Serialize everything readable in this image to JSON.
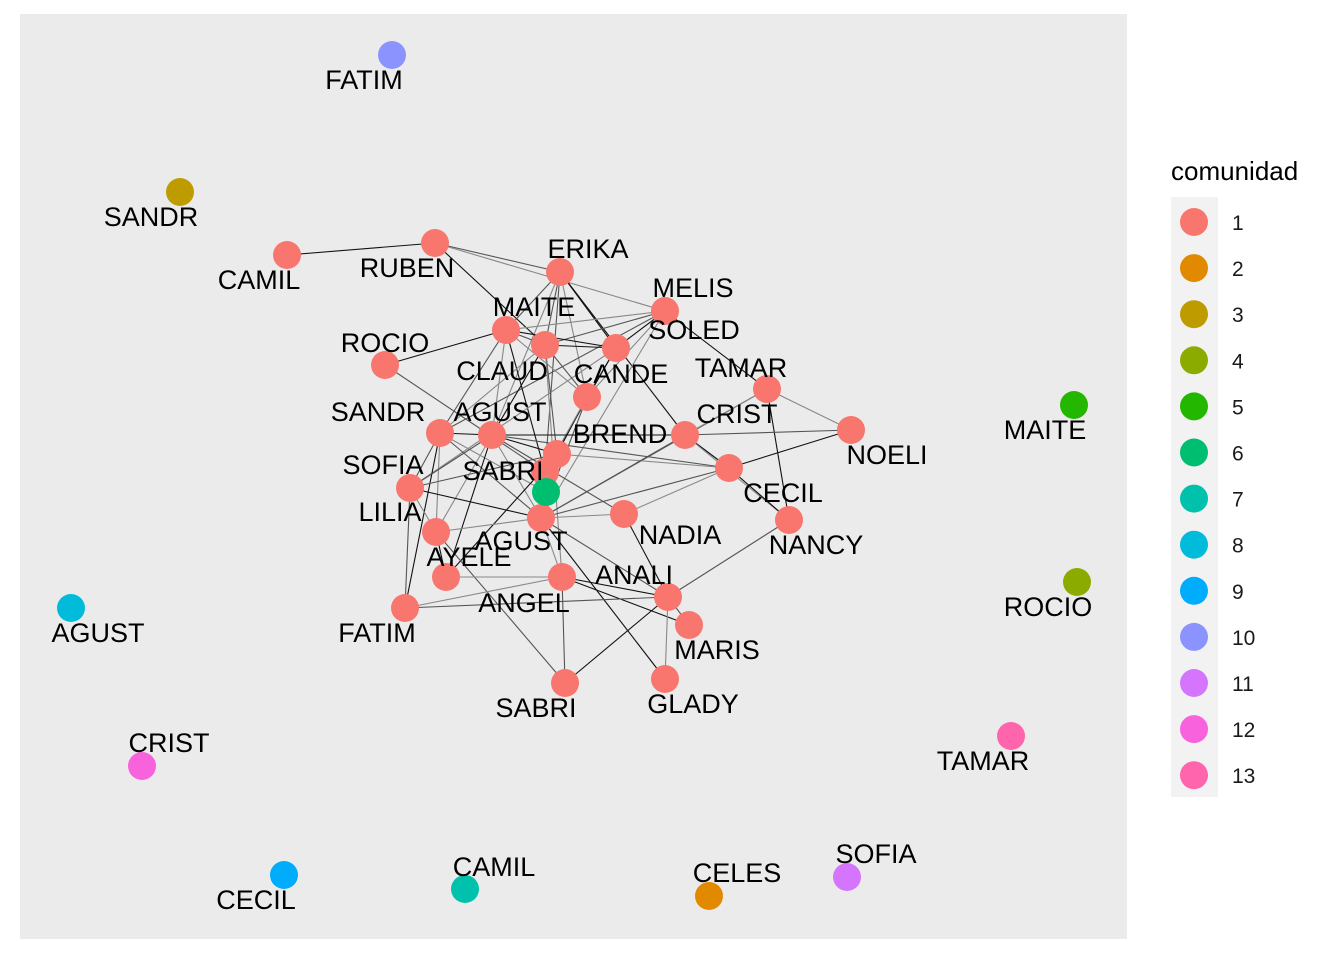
{
  "legend": {
    "title": "comunidad",
    "items": [
      {
        "label": "1",
        "color": "#F8766D"
      },
      {
        "label": "2",
        "color": "#E18A00"
      },
      {
        "label": "3",
        "color": "#BE9C00"
      },
      {
        "label": "4",
        "color": "#8CAB00"
      },
      {
        "label": "5",
        "color": "#24B700"
      },
      {
        "label": "6",
        "color": "#00BE70"
      },
      {
        "label": "7",
        "color": "#00C1AB"
      },
      {
        "label": "8",
        "color": "#00BBDA"
      },
      {
        "label": "9",
        "color": "#00ACFC"
      },
      {
        "label": "10",
        "color": "#8B93FF"
      },
      {
        "label": "11",
        "color": "#D575FE"
      },
      {
        "label": "12",
        "color": "#F962DD"
      },
      {
        "label": "13",
        "color": "#FF65AC"
      }
    ]
  },
  "nodes": [
    {
      "id": "camil1",
      "label": "CAMIL",
      "community": 1
    },
    {
      "id": "ruben",
      "label": "RUBEN",
      "community": 1
    },
    {
      "id": "erika",
      "label": "ERIKA",
      "community": 1
    },
    {
      "id": "melis",
      "label": "MELIS",
      "community": 1
    },
    {
      "id": "maite1",
      "label": "MAITE",
      "community": 1
    },
    {
      "id": "soled",
      "label": "SOLED",
      "community": 1
    },
    {
      "id": "claud",
      "label": "CLAUD",
      "community": 1
    },
    {
      "id": "cande",
      "label": "CANDE",
      "community": 1
    },
    {
      "id": "rocio1",
      "label": "ROCIO",
      "community": 1
    },
    {
      "id": "tamar1",
      "label": "TAMAR",
      "community": 1
    },
    {
      "id": "sandr1",
      "label": "SANDR",
      "community": 1
    },
    {
      "id": "agust1",
      "label": "AGUST",
      "community": 1
    },
    {
      "id": "brend",
      "label": "BREND",
      "community": 1
    },
    {
      "id": "crist1",
      "label": "CRIST",
      "community": 1
    },
    {
      "id": "noeli",
      "label": "NOELI",
      "community": 1
    },
    {
      "id": "sofia1",
      "label": "SOFIA",
      "community": 1
    },
    {
      "id": "sabri1",
      "label": "SABRI",
      "community": 1
    },
    {
      "id": "cecil1",
      "label": "CECIL",
      "community": 1
    },
    {
      "id": "lilia",
      "label": "LILIA",
      "community": 1
    },
    {
      "id": "agust2",
      "label": "AGUST",
      "community": 1
    },
    {
      "id": "nadia",
      "label": "NADIA",
      "community": 1
    },
    {
      "id": "nancy",
      "label": "NANCY",
      "community": 1
    },
    {
      "id": "ayele",
      "label": "AYELE",
      "community": 1
    },
    {
      "id": "angel",
      "label": "ANGEL",
      "community": 1
    },
    {
      "id": "anali",
      "label": "ANALI",
      "community": 1
    },
    {
      "id": "fatim1",
      "label": "FATIM",
      "community": 1
    },
    {
      "id": "maris",
      "label": "MARIS",
      "community": 1
    },
    {
      "id": "sabri2",
      "label": "SABRI",
      "community": 1
    },
    {
      "id": "glady",
      "label": "GLADY",
      "community": 1
    },
    {
      "id": "g6",
      "label": "",
      "community": 6
    },
    {
      "id": "fatim10",
      "label": "FATIM",
      "community": 10
    },
    {
      "id": "sandr3",
      "label": "SANDR",
      "community": 3
    },
    {
      "id": "maite5",
      "label": "MAITE",
      "community": 5
    },
    {
      "id": "rocio4",
      "label": "ROCIO",
      "community": 4
    },
    {
      "id": "agust8",
      "label": "AGUST",
      "community": 8
    },
    {
      "id": "crist12",
      "label": "CRIST",
      "community": 12
    },
    {
      "id": "tamar13",
      "label": "TAMAR",
      "community": 13
    },
    {
      "id": "cecil9",
      "label": "CECIL",
      "community": 9
    },
    {
      "id": "camil7",
      "label": "CAMIL",
      "community": 7
    },
    {
      "id": "celes2",
      "label": "CELES",
      "community": 2
    },
    {
      "id": "sofia11",
      "label": "SOFIA",
      "community": 11
    }
  ],
  "edges": [
    [
      "camil1",
      "ruben"
    ],
    [
      "ruben",
      "erika"
    ],
    [
      "ruben",
      "melis"
    ],
    [
      "ruben",
      "claud"
    ],
    [
      "erika",
      "maite1"
    ],
    [
      "erika",
      "cande"
    ],
    [
      "erika",
      "soled"
    ],
    [
      "erika",
      "claud"
    ],
    [
      "erika",
      "agust1"
    ],
    [
      "erika",
      "crist1"
    ],
    [
      "erika",
      "sabri1"
    ],
    [
      "melis",
      "maite1"
    ],
    [
      "melis",
      "soled"
    ],
    [
      "melis",
      "claud"
    ],
    [
      "melis",
      "cande"
    ],
    [
      "melis",
      "tamar1"
    ],
    [
      "melis",
      "sandr1"
    ],
    [
      "melis",
      "agust2"
    ],
    [
      "maite1",
      "soled"
    ],
    [
      "maite1",
      "claud"
    ],
    [
      "maite1",
      "agust1"
    ],
    [
      "maite1",
      "sabri1"
    ],
    [
      "maite1",
      "sandr1"
    ],
    [
      "maite1",
      "cande"
    ],
    [
      "soled",
      "claud"
    ],
    [
      "soled",
      "cande"
    ],
    [
      "soled",
      "sofia1"
    ],
    [
      "soled",
      "sabri1"
    ],
    [
      "claud",
      "cande"
    ],
    [
      "claud",
      "sandr1"
    ],
    [
      "claud",
      "agust1"
    ],
    [
      "claud",
      "brend"
    ],
    [
      "claud",
      "angel"
    ],
    [
      "cande",
      "brend"
    ],
    [
      "cande",
      "agust2"
    ],
    [
      "cande",
      "sabri1"
    ],
    [
      "rocio1",
      "maite1"
    ],
    [
      "rocio1",
      "sabri1"
    ],
    [
      "tamar1",
      "noeli"
    ],
    [
      "tamar1",
      "nancy"
    ],
    [
      "tamar1",
      "agust2"
    ],
    [
      "tamar1",
      "crist1"
    ],
    [
      "sandr1",
      "agust1"
    ],
    [
      "sandr1",
      "agust2"
    ],
    [
      "sandr1",
      "lilia"
    ],
    [
      "sandr1",
      "fatim1"
    ],
    [
      "sandr1",
      "sofia1"
    ],
    [
      "sandr1",
      "g6"
    ],
    [
      "agust1",
      "brend"
    ],
    [
      "agust1",
      "nadia"
    ],
    [
      "agust1",
      "lilia"
    ],
    [
      "agust1",
      "ayele"
    ],
    [
      "agust1",
      "sofia1"
    ],
    [
      "agust1",
      "agust2"
    ],
    [
      "agust1",
      "crist1"
    ],
    [
      "agust1",
      "cecil1"
    ],
    [
      "brend",
      "cecil1"
    ],
    [
      "brend",
      "ayele"
    ],
    [
      "brend",
      "sofia1"
    ],
    [
      "brend",
      "g6"
    ],
    [
      "crist1",
      "cecil1"
    ],
    [
      "crist1",
      "agust2"
    ],
    [
      "crist1",
      "nancy"
    ],
    [
      "noeli",
      "cecil1"
    ],
    [
      "noeli",
      "crist1"
    ],
    [
      "sofia1",
      "lilia"
    ],
    [
      "sofia1",
      "agust2"
    ],
    [
      "sofia1",
      "fatim1"
    ],
    [
      "cecil1",
      "nadia"
    ],
    [
      "cecil1",
      "nancy"
    ],
    [
      "cecil1",
      "agust2"
    ],
    [
      "lilia",
      "agust2"
    ],
    [
      "lilia",
      "ayele"
    ],
    [
      "lilia",
      "sabri2"
    ],
    [
      "agust2",
      "nadia"
    ],
    [
      "agust2",
      "glady"
    ],
    [
      "agust2",
      "anali"
    ],
    [
      "agust2",
      "angel"
    ],
    [
      "nadia",
      "anali"
    ],
    [
      "nancy",
      "anali"
    ],
    [
      "ayele",
      "angel"
    ],
    [
      "angel",
      "anali"
    ],
    [
      "angel",
      "sabri2"
    ],
    [
      "angel",
      "fatim1"
    ],
    [
      "angel",
      "maris"
    ],
    [
      "anali",
      "maris"
    ],
    [
      "anali",
      "glady"
    ],
    [
      "anali",
      "sabri2"
    ],
    [
      "anali",
      "fatim1"
    ]
  ]
}
